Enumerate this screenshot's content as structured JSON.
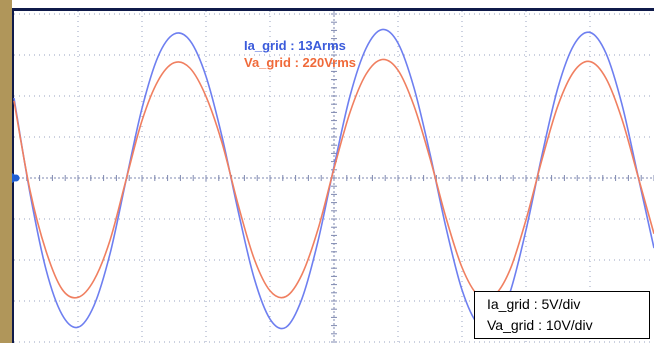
{
  "chart_data": {
    "type": "line",
    "title": "",
    "xlabel": "",
    "ylabel": "",
    "x_divisions": 10,
    "y_divisions": 8,
    "grid": true,
    "x": [
      0,
      0.25,
      0.5,
      0.75,
      1,
      1.25,
      1.5,
      1.75,
      2,
      2.25,
      2.5,
      2.75,
      3,
      3.25,
      3.5,
      3.75,
      4,
      4.25,
      4.5,
      4.75,
      5,
      5.25,
      5.5,
      5.75,
      6,
      6.25,
      6.5,
      6.75,
      7,
      7.25,
      7.5,
      7.75,
      8,
      8.25,
      8.5,
      8.75,
      9,
      9.25,
      9.5,
      9.75,
      10
    ],
    "series": [
      {
        "name": "Ia_grid",
        "color": "#6e7ff0",
        "annotation": "Ia_grid : 13Arms",
        "scale": "Ia_grid : 5V/div",
        "values": [
          1.95,
          -0.37,
          -2.23,
          -3.33,
          -3.64,
          -3.11,
          -1.85,
          -0.06,
          1.7,
          2.96,
          3.51,
          3.35,
          2.48,
          1.01,
          -0.79,
          -2.43,
          -3.44,
          -3.64,
          -2.94,
          -1.54,
          0.28,
          2.0,
          3.16,
          3.62,
          3.29,
          2.2,
          0.59,
          -1.21,
          -2.73,
          -3.57,
          -3.61,
          -2.79,
          -1.27,
          0.56,
          2.21,
          3.25,
          3.55,
          3.04,
          1.79,
          0.05,
          -1.71
        ]
      },
      {
        "name": "Va_grid",
        "color": "#f07f60",
        "annotation": "Va_grid : 220Vrms",
        "scale": "Va_grid : 10V/div",
        "values": [
          1.88,
          -0.3,
          -1.78,
          -2.71,
          -2.91,
          -2.49,
          -1.52,
          -0.05,
          1.4,
          2.37,
          2.81,
          2.68,
          1.99,
          0.86,
          -0.64,
          -1.96,
          -2.75,
          -2.89,
          -2.35,
          -1.25,
          0.23,
          1.6,
          2.53,
          2.89,
          2.63,
          1.76,
          0.48,
          -0.97,
          -2.18,
          -2.86,
          -2.87,
          -2.24,
          -1.02,
          0.45,
          1.77,
          2.6,
          2.84,
          2.43,
          1.43,
          0.04,
          -1.36
        ]
      }
    ]
  },
  "annotations": {
    "ia_label": "Ia_grid : 13Arms",
    "va_label": "Va_grid : 220Vrms"
  },
  "scale_box": {
    "line1": "Ia_grid : 5V/div",
    "line2": "Va_grid : 10V/div"
  },
  "colors": {
    "frame": "#0f1a4a",
    "left_strip": "#b0965a",
    "grid_dots": "#9aa3c2",
    "axis": "#7f89b0",
    "ground_marker": "#1f5fd6",
    "ia_text": "#3b5bdb",
    "va_text": "#f06a3a"
  }
}
